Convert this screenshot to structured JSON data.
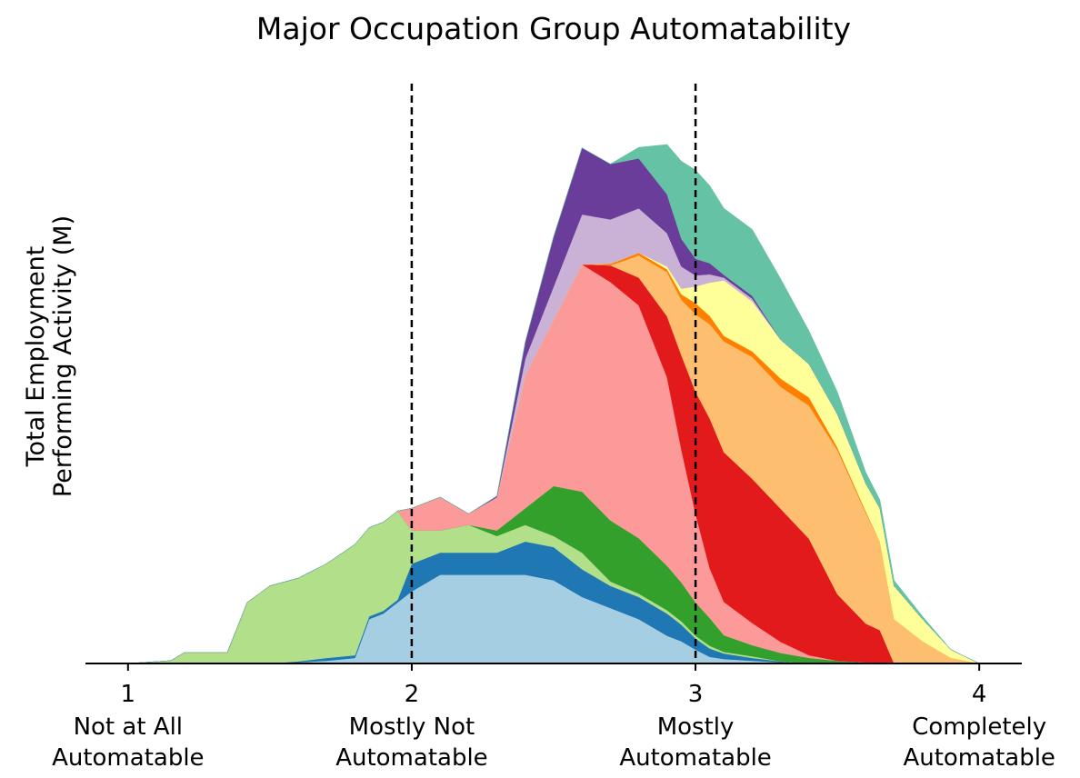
{
  "chart_data": {
    "type": "area",
    "stacked": true,
    "title": "Major Occupation Group Automatability",
    "ylabel_lines": [
      "Total Employment",
      "Performing Activity (M)"
    ],
    "xlabel": "",
    "xlim": [
      0.85,
      4.15
    ],
    "ylim": [
      0,
      100
    ],
    "y_ticks_shown": false,
    "grid": false,
    "legend": "none",
    "x_ticks": [
      {
        "value": 1,
        "number": "1",
        "line1": "Not at All",
        "line2": "Automatable"
      },
      {
        "value": 2,
        "number": "2",
        "line1": "Mostly Not",
        "line2": "Automatable"
      },
      {
        "value": 3,
        "number": "3",
        "line1": "Mostly",
        "line2": "Automatable"
      },
      {
        "value": 4,
        "number": "4",
        "line1": "Completely",
        "line2": "Automatable"
      }
    ],
    "reference_lines": [
      2,
      3
    ],
    "x": [
      1.0,
      1.15,
      1.2,
      1.35,
      1.42,
      1.5,
      1.6,
      1.7,
      1.8,
      1.85,
      1.9,
      1.95,
      2.0,
      2.1,
      2.2,
      2.3,
      2.4,
      2.5,
      2.6,
      2.7,
      2.8,
      2.9,
      2.95,
      3.0,
      3.05,
      3.1,
      3.2,
      3.3,
      3.4,
      3.5,
      3.6,
      3.65,
      3.7,
      3.8,
      3.9,
      4.0,
      4.1
    ],
    "series": [
      {
        "color": "#a6cee3",
        "values": [
          0,
          0,
          0,
          0,
          0,
          0,
          0.2,
          0.5,
          1,
          8,
          9,
          11,
          13,
          16,
          16,
          16,
          16,
          15,
          12,
          10,
          8,
          5,
          4,
          2.5,
          1.2,
          0.8,
          0.5,
          0.2,
          0,
          0,
          0,
          0,
          0,
          0,
          0,
          0,
          0
        ]
      },
      {
        "color": "#1f78b4",
        "values": [
          0,
          0,
          0,
          0,
          0,
          0,
          0.2,
          0.5,
          0.5,
          0.5,
          0.5,
          0.5,
          5,
          4,
          4,
          4,
          6,
          6,
          5,
          4,
          4,
          4,
          3,
          2,
          1.5,
          1,
          0.5,
          0.2,
          0,
          0,
          0,
          0,
          0,
          0,
          0,
          0,
          0
        ]
      },
      {
        "color": "#b2df8a",
        "values": [
          0,
          0.5,
          2,
          2,
          11,
          14,
          15,
          17,
          20,
          16,
          16,
          16,
          6,
          4,
          5,
          3,
          3,
          2,
          3,
          0.8,
          0.6,
          0.6,
          0.6,
          0.5,
          0.5,
          0.3,
          0.3,
          0,
          0,
          0,
          0,
          0,
          0,
          0,
          0,
          0,
          0
        ]
      },
      {
        "color": "#33a02c",
        "values": [
          0,
          0,
          0,
          0,
          0,
          0,
          0,
          0,
          0,
          0,
          0,
          0,
          0,
          0,
          0,
          1,
          3,
          9,
          11,
          11,
          10,
          8,
          7,
          6,
          5,
          3,
          2,
          1.5,
          1,
          0.5,
          0.2,
          0,
          0,
          0,
          0,
          0,
          0
        ]
      },
      {
        "color": "#fb9a99",
        "values": [
          0,
          0,
          0,
          0,
          0,
          0,
          0,
          0,
          0,
          0,
          0,
          0,
          4,
          6,
          2,
          6,
          24,
          30,
          41,
          43,
          42,
          34,
          24,
          16,
          9,
          6,
          4,
          2,
          0.5,
          0,
          0,
          0,
          0,
          0,
          0,
          0,
          0
        ]
      },
      {
        "color": "#e31a1c",
        "values": [
          0,
          0,
          0,
          0,
          0,
          0,
          0,
          0,
          0,
          0,
          0,
          0,
          0,
          0,
          0,
          0,
          0,
          0,
          0,
          3,
          5,
          11,
          17,
          22,
          27,
          27,
          26,
          24,
          21,
          12,
          7,
          6,
          0,
          0,
          0,
          0,
          0
        ]
      },
      {
        "color": "#fdbf6f",
        "values": [
          0,
          0,
          0,
          0,
          0,
          0,
          0,
          0,
          0,
          0,
          0,
          0,
          0,
          0,
          0,
          0,
          0,
          0,
          0,
          0,
          4,
          8,
          10,
          14,
          17,
          20,
          22,
          22,
          24,
          26,
          20,
          16,
          8,
          4,
          1,
          0,
          0
        ]
      },
      {
        "color": "#ff7f00",
        "values": [
          0,
          0,
          0,
          0,
          0,
          0,
          0,
          0,
          0,
          0,
          0,
          0,
          0,
          0,
          0,
          0,
          0,
          0,
          0,
          0.3,
          0.5,
          0.5,
          1,
          2,
          1.5,
          1,
          1,
          1.5,
          1.5,
          0.5,
          0.3,
          0,
          0,
          0,
          0,
          0,
          0
        ]
      },
      {
        "color": "#ffff99",
        "values": [
          0,
          0,
          0,
          0,
          0,
          0,
          0,
          0,
          0,
          0,
          0,
          0,
          0,
          0,
          0,
          0,
          0,
          0,
          0,
          0,
          0,
          0.5,
          1,
          3,
          6,
          10,
          9,
          7,
          6,
          6,
          5,
          6,
          6,
          4,
          1.5,
          0,
          0
        ]
      },
      {
        "color": "#cab2d6",
        "values": [
          0,
          0,
          0,
          0,
          0,
          0,
          0,
          0,
          0,
          0,
          0,
          0,
          0,
          0,
          0,
          0,
          3,
          6,
          9,
          8,
          8,
          6,
          4,
          2,
          1.5,
          0.5,
          0.5,
          0,
          0,
          0,
          0,
          0,
          0,
          0,
          0,
          0,
          0
        ]
      },
      {
        "color": "#6a3d9a",
        "values": [
          0,
          0,
          0,
          0,
          0,
          0,
          0,
          0,
          0,
          0,
          0,
          0,
          0,
          0,
          0,
          0.2,
          3,
          9,
          12,
          10,
          9,
          7,
          5,
          3,
          2,
          0.5,
          0.5,
          0,
          0,
          0,
          0,
          0,
          0,
          0,
          0,
          0,
          0
        ]
      },
      {
        "color": "#66c2a5",
        "values": [
          0,
          0,
          0,
          0,
          0,
          0,
          0,
          0,
          0,
          0,
          0,
          0,
          0,
          0,
          0,
          0,
          0,
          0,
          0,
          0,
          2,
          9,
          14,
          16,
          14,
          12,
          12,
          11,
          6,
          4,
          2,
          1.5,
          1,
          0.5,
          0,
          0,
          0
        ]
      }
    ]
  }
}
